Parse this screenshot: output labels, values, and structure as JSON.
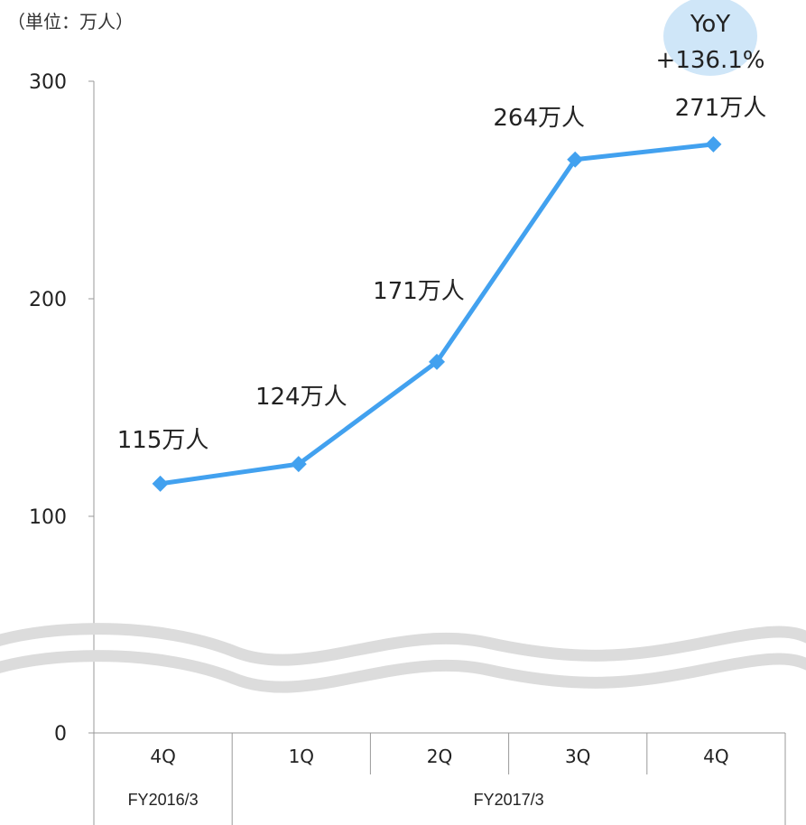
{
  "unit_label": "（単位：万人）",
  "yoy": {
    "line1": "YoY",
    "line2": "+136.1%"
  },
  "colors": {
    "series": "#42a1ef",
    "axis": "#999999",
    "break": "#dcdcdc",
    "badge": "#cfe6f8"
  },
  "chart_data": {
    "type": "line",
    "categories": [
      "4Q",
      "1Q",
      "2Q",
      "3Q",
      "4Q"
    ],
    "groups": [
      {
        "label": "FY2016/3",
        "span": 1
      },
      {
        "label": "FY2017/3",
        "span": 4
      }
    ],
    "series": [
      {
        "values": [
          115,
          124,
          171,
          264,
          271
        ]
      }
    ],
    "data_labels": [
      "115万人",
      "124万人",
      "171万人",
      "264万人",
      "271万人"
    ],
    "y_ticks": [
      0,
      100,
      200,
      300
    ],
    "ylim": [
      0,
      300
    ],
    "axis_break": true,
    "grid": false,
    "marker": "diamond"
  }
}
